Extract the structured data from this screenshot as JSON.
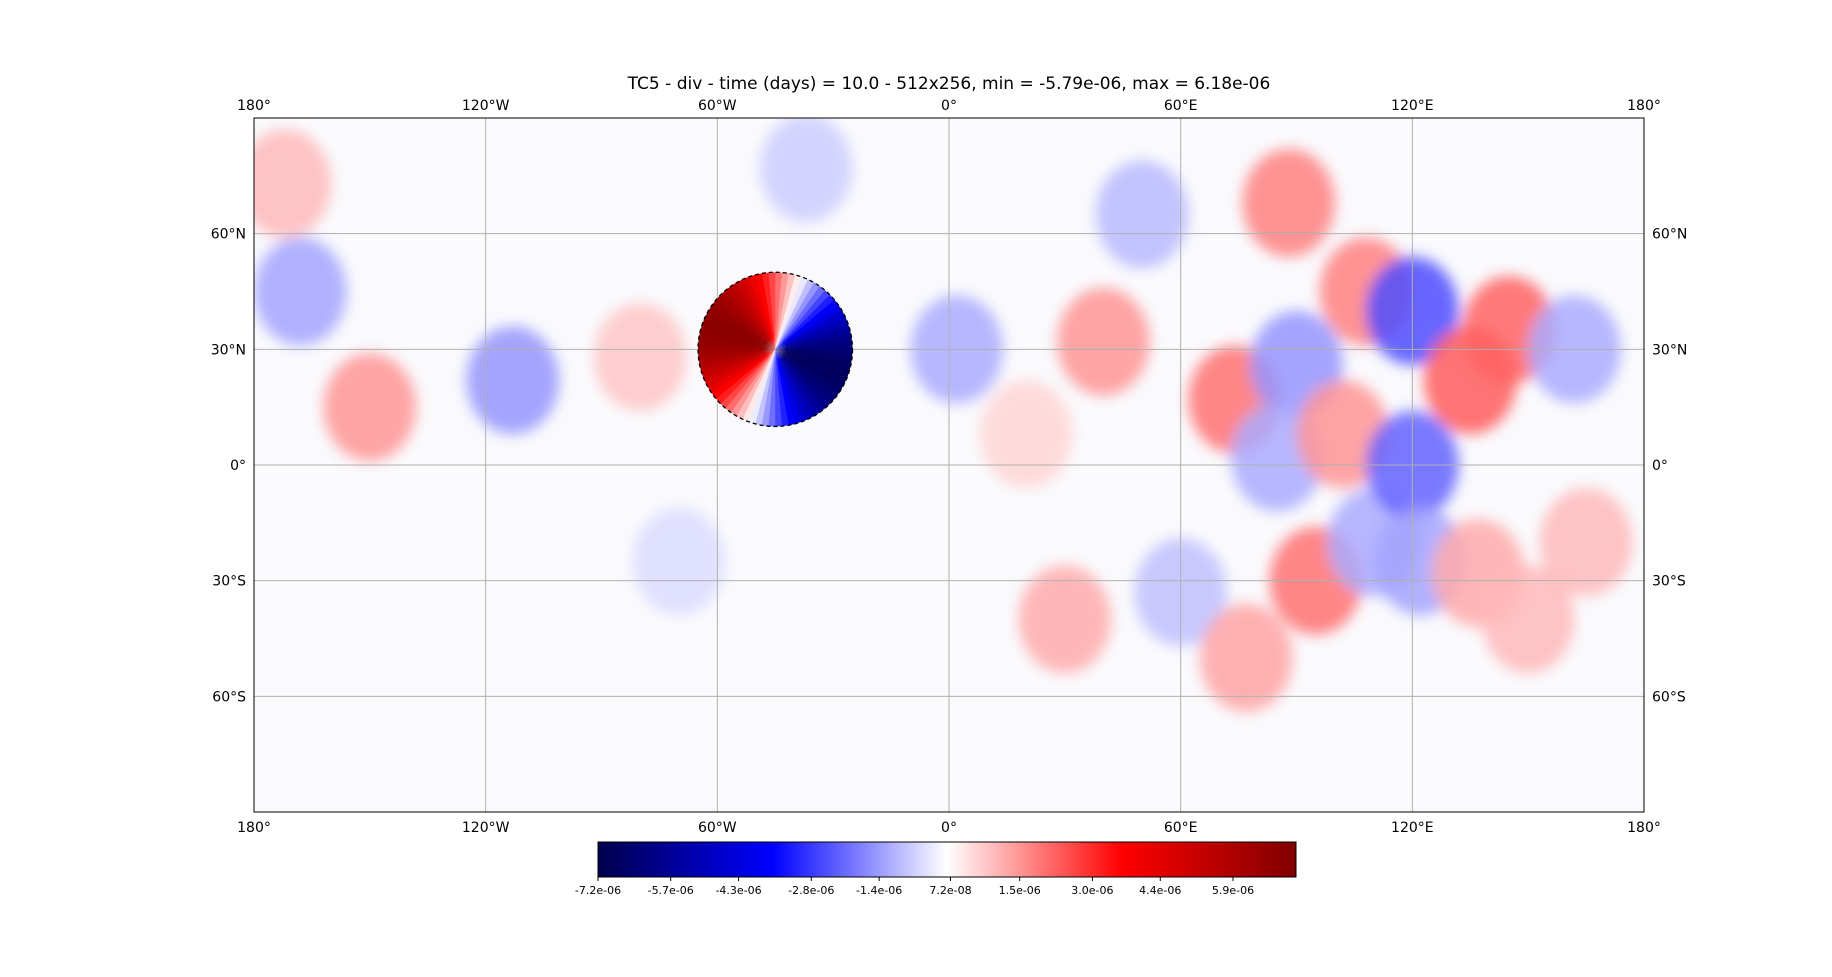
{
  "chart_data": {
    "type": "heatmap",
    "projection": "plate-carree",
    "title": "TC5 - div - time (days) = 10.0 - 512x256, min = -5.79e-06, max = 6.18e-06",
    "xlim": [
      -180,
      180
    ],
    "ylim": [
      -90,
      90
    ],
    "grid": true,
    "lon_ticks": [
      -180,
      -120,
      -60,
      0,
      60,
      120,
      180
    ],
    "lon_tick_labels": [
      "180°",
      "120°W",
      "60°W",
      "0°",
      "60°E",
      "120°E",
      "180°"
    ],
    "lat_ticks": [
      60,
      30,
      0,
      -30,
      -60
    ],
    "lat_tick_labels": [
      "60°N",
      "30°N",
      "0°",
      "30°S",
      "60°S"
    ],
    "mountain_circle": {
      "center_lon": -45,
      "center_lat": 30,
      "radius_deg": 20,
      "style": "dashed",
      "dipole": "positive to the west, negative to the east"
    },
    "colorbar": {
      "cmap": "seismic",
      "orientation": "horizontal",
      "range": [
        -7.2e-06,
        7.2e-06
      ],
      "ticks": [
        -7.2e-06,
        -5.7e-06,
        -4.3e-06,
        -2.8e-06,
        -1.4e-06,
        7.2e-08,
        1.5e-06,
        3e-06,
        4.4e-06,
        5.9e-06
      ],
      "tick_labels": [
        "-7.2e-06",
        "-5.7e-06",
        "-4.3e-06",
        "-2.8e-06",
        "-1.4e-06",
        "7.2e-08",
        "1.5e-06",
        "3.0e-06",
        "4.4e-06",
        "5.9e-06"
      ]
    },
    "field_features": [
      {
        "lon": -172,
        "lat": 73,
        "value": 1e-06
      },
      {
        "lon": -168,
        "lat": 45,
        "value": -1.3e-06
      },
      {
        "lon": -150,
        "lat": 15,
        "value": 1.5e-06
      },
      {
        "lon": -113,
        "lat": 22,
        "value": -1.5e-06
      },
      {
        "lon": -80,
        "lat": 28,
        "value": 8e-07
      },
      {
        "lon": -70,
        "lat": -25,
        "value": -5e-07
      },
      {
        "lon": -37,
        "lat": 77,
        "value": -7e-07
      },
      {
        "lon": 2,
        "lat": 30,
        "value": -1.2e-06
      },
      {
        "lon": 20,
        "lat": 8,
        "value": 6e-07
      },
      {
        "lon": 40,
        "lat": 32,
        "value": 1.5e-06
      },
      {
        "lon": 30,
        "lat": -40,
        "value": 1.2e-06
      },
      {
        "lon": 50,
        "lat": 65,
        "value": -1e-06
      },
      {
        "lon": 60,
        "lat": -33,
        "value": -9e-07
      },
      {
        "lon": 74,
        "lat": 17,
        "value": 2e-06
      },
      {
        "lon": 77,
        "lat": -50,
        "value": 1.3e-06
      },
      {
        "lon": 90,
        "lat": 26,
        "value": -1.5e-06
      },
      {
        "lon": 88,
        "lat": 68,
        "value": 1.8e-06
      },
      {
        "lon": 85,
        "lat": 2,
        "value": -1.2e-06
      },
      {
        "lon": 95,
        "lat": -30,
        "value": 2e-06
      },
      {
        "lon": 102,
        "lat": 8,
        "value": 1.5e-06
      },
      {
        "lon": 108,
        "lat": 45,
        "value": 1.8e-06
      },
      {
        "lon": 110,
        "lat": -20,
        "value": -1.2e-06
      },
      {
        "lon": 120,
        "lat": 40,
        "value": -2.5e-06
      },
      {
        "lon": 120,
        "lat": 0,
        "value": -2.2e-06
      },
      {
        "lon": 122,
        "lat": -25,
        "value": -1.3e-06
      },
      {
        "lon": 135,
        "lat": 22,
        "value": 2.3e-06
      },
      {
        "lon": 145,
        "lat": 35,
        "value": 2.2e-06
      },
      {
        "lon": 137,
        "lat": -28,
        "value": 1.2e-06
      },
      {
        "lon": 150,
        "lat": -40,
        "value": 1e-06
      },
      {
        "lon": 162,
        "lat": 30,
        "value": -1.2e-06
      },
      {
        "lon": 165,
        "lat": -20,
        "value": 1e-06
      }
    ]
  }
}
